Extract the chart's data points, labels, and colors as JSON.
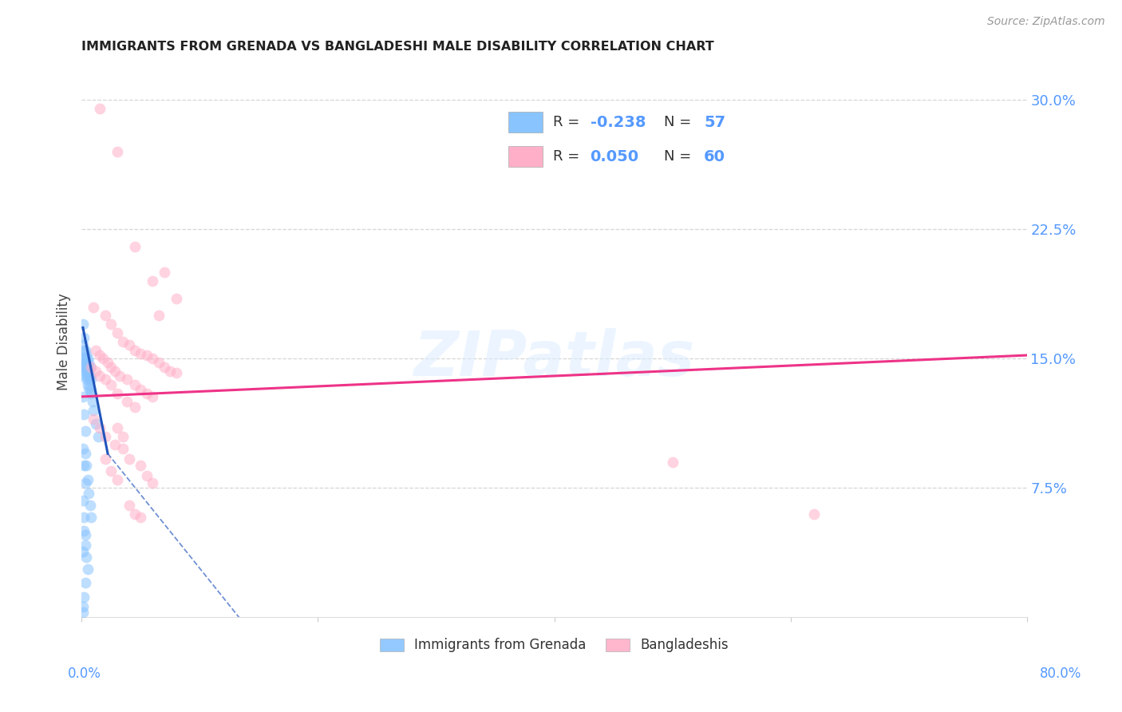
{
  "title": "IMMIGRANTS FROM GRENADA VS BANGLADESHI MALE DISABILITY CORRELATION CHART",
  "source": "Source: ZipAtlas.com",
  "ylabel": "Male Disability",
  "watermark": "ZIPatlas",
  "xlim": [
    0.0,
    0.8
  ],
  "ylim": [
    0.0,
    0.32
  ],
  "legend_r_blue": "-0.238",
  "legend_n_blue": "57",
  "legend_r_pink": "0.050",
  "legend_n_pink": "60",
  "blue_scatter": [
    [
      0.001,
      0.17
    ],
    [
      0.001,
      0.158
    ],
    [
      0.001,
      0.15
    ],
    [
      0.001,
      0.145
    ],
    [
      0.002,
      0.162
    ],
    [
      0.002,
      0.155
    ],
    [
      0.002,
      0.148
    ],
    [
      0.002,
      0.143
    ],
    [
      0.003,
      0.155
    ],
    [
      0.003,
      0.15
    ],
    [
      0.003,
      0.145
    ],
    [
      0.003,
      0.14
    ],
    [
      0.004,
      0.152
    ],
    [
      0.004,
      0.148
    ],
    [
      0.004,
      0.143
    ],
    [
      0.004,
      0.138
    ],
    [
      0.005,
      0.15
    ],
    [
      0.005,
      0.145
    ],
    [
      0.005,
      0.14
    ],
    [
      0.005,
      0.135
    ],
    [
      0.006,
      0.148
    ],
    [
      0.006,
      0.143
    ],
    [
      0.006,
      0.138
    ],
    [
      0.006,
      0.133
    ],
    [
      0.007,
      0.145
    ],
    [
      0.007,
      0.14
    ],
    [
      0.007,
      0.132
    ],
    [
      0.008,
      0.138
    ],
    [
      0.008,
      0.13
    ],
    [
      0.009,
      0.125
    ],
    [
      0.01,
      0.12
    ],
    [
      0.012,
      0.112
    ],
    [
      0.014,
      0.105
    ],
    [
      0.003,
      0.095
    ],
    [
      0.004,
      0.088
    ],
    [
      0.005,
      0.08
    ],
    [
      0.006,
      0.072
    ],
    [
      0.007,
      0.065
    ],
    [
      0.008,
      0.058
    ],
    [
      0.002,
      0.05
    ],
    [
      0.003,
      0.042
    ],
    [
      0.004,
      0.035
    ],
    [
      0.005,
      0.028
    ],
    [
      0.003,
      0.02
    ],
    [
      0.002,
      0.012
    ],
    [
      0.001,
      0.006
    ],
    [
      0.001,
      0.003
    ],
    [
      0.001,
      0.128
    ],
    [
      0.002,
      0.118
    ],
    [
      0.003,
      0.108
    ],
    [
      0.001,
      0.098
    ],
    [
      0.002,
      0.088
    ],
    [
      0.003,
      0.078
    ],
    [
      0.001,
      0.068
    ],
    [
      0.002,
      0.058
    ],
    [
      0.003,
      0.048
    ],
    [
      0.001,
      0.038
    ]
  ],
  "pink_scatter": [
    [
      0.015,
      0.295
    ],
    [
      0.03,
      0.27
    ],
    [
      0.045,
      0.215
    ],
    [
      0.06,
      0.195
    ],
    [
      0.07,
      0.2
    ],
    [
      0.08,
      0.185
    ],
    [
      0.01,
      0.18
    ],
    [
      0.02,
      0.175
    ],
    [
      0.025,
      0.17
    ],
    [
      0.03,
      0.165
    ],
    [
      0.035,
      0.16
    ],
    [
      0.04,
      0.158
    ],
    [
      0.045,
      0.155
    ],
    [
      0.05,
      0.153
    ],
    [
      0.055,
      0.152
    ],
    [
      0.06,
      0.15
    ],
    [
      0.065,
      0.148
    ],
    [
      0.07,
      0.145
    ],
    [
      0.075,
      0.143
    ],
    [
      0.08,
      0.142
    ],
    [
      0.012,
      0.155
    ],
    [
      0.015,
      0.152
    ],
    [
      0.018,
      0.15
    ],
    [
      0.022,
      0.148
    ],
    [
      0.025,
      0.145
    ],
    [
      0.028,
      0.143
    ],
    [
      0.032,
      0.14
    ],
    [
      0.038,
      0.138
    ],
    [
      0.045,
      0.135
    ],
    [
      0.05,
      0.132
    ],
    [
      0.055,
      0.13
    ],
    [
      0.06,
      0.128
    ],
    [
      0.008,
      0.145
    ],
    [
      0.012,
      0.143
    ],
    [
      0.015,
      0.14
    ],
    [
      0.02,
      0.138
    ],
    [
      0.025,
      0.135
    ],
    [
      0.03,
      0.13
    ],
    [
      0.038,
      0.125
    ],
    [
      0.045,
      0.122
    ],
    [
      0.01,
      0.115
    ],
    [
      0.015,
      0.11
    ],
    [
      0.02,
      0.105
    ],
    [
      0.028,
      0.1
    ],
    [
      0.035,
      0.098
    ],
    [
      0.04,
      0.092
    ],
    [
      0.05,
      0.088
    ],
    [
      0.055,
      0.082
    ],
    [
      0.06,
      0.078
    ],
    [
      0.04,
      0.065
    ],
    [
      0.045,
      0.06
    ],
    [
      0.05,
      0.058
    ],
    [
      0.03,
      0.11
    ],
    [
      0.035,
      0.105
    ],
    [
      0.065,
      0.175
    ],
    [
      0.02,
      0.092
    ],
    [
      0.025,
      0.085
    ],
    [
      0.03,
      0.08
    ],
    [
      0.62,
      0.06
    ],
    [
      0.5,
      0.09
    ]
  ],
  "blue_line_solid": [
    [
      0.001,
      0.168
    ],
    [
      0.022,
      0.095
    ]
  ],
  "blue_line_dash": [
    [
      0.022,
      0.095
    ],
    [
      0.18,
      -0.04
    ]
  ],
  "pink_line": [
    [
      0.0,
      0.128
    ],
    [
      0.8,
      0.152
    ]
  ],
  "scatter_size": 100,
  "scatter_alpha": 0.55,
  "blue_color": "#89C4FF",
  "pink_color": "#FFB0C8",
  "blue_line_color": "#2255BB",
  "pink_line_color": "#EE3388",
  "grid_color": "#CCCCCC",
  "background_color": "#FFFFFF",
  "axis_label_color": "#5599FF",
  "ylabel_color": "#444444",
  "title_color": "#222222",
  "source_color": "#999999"
}
